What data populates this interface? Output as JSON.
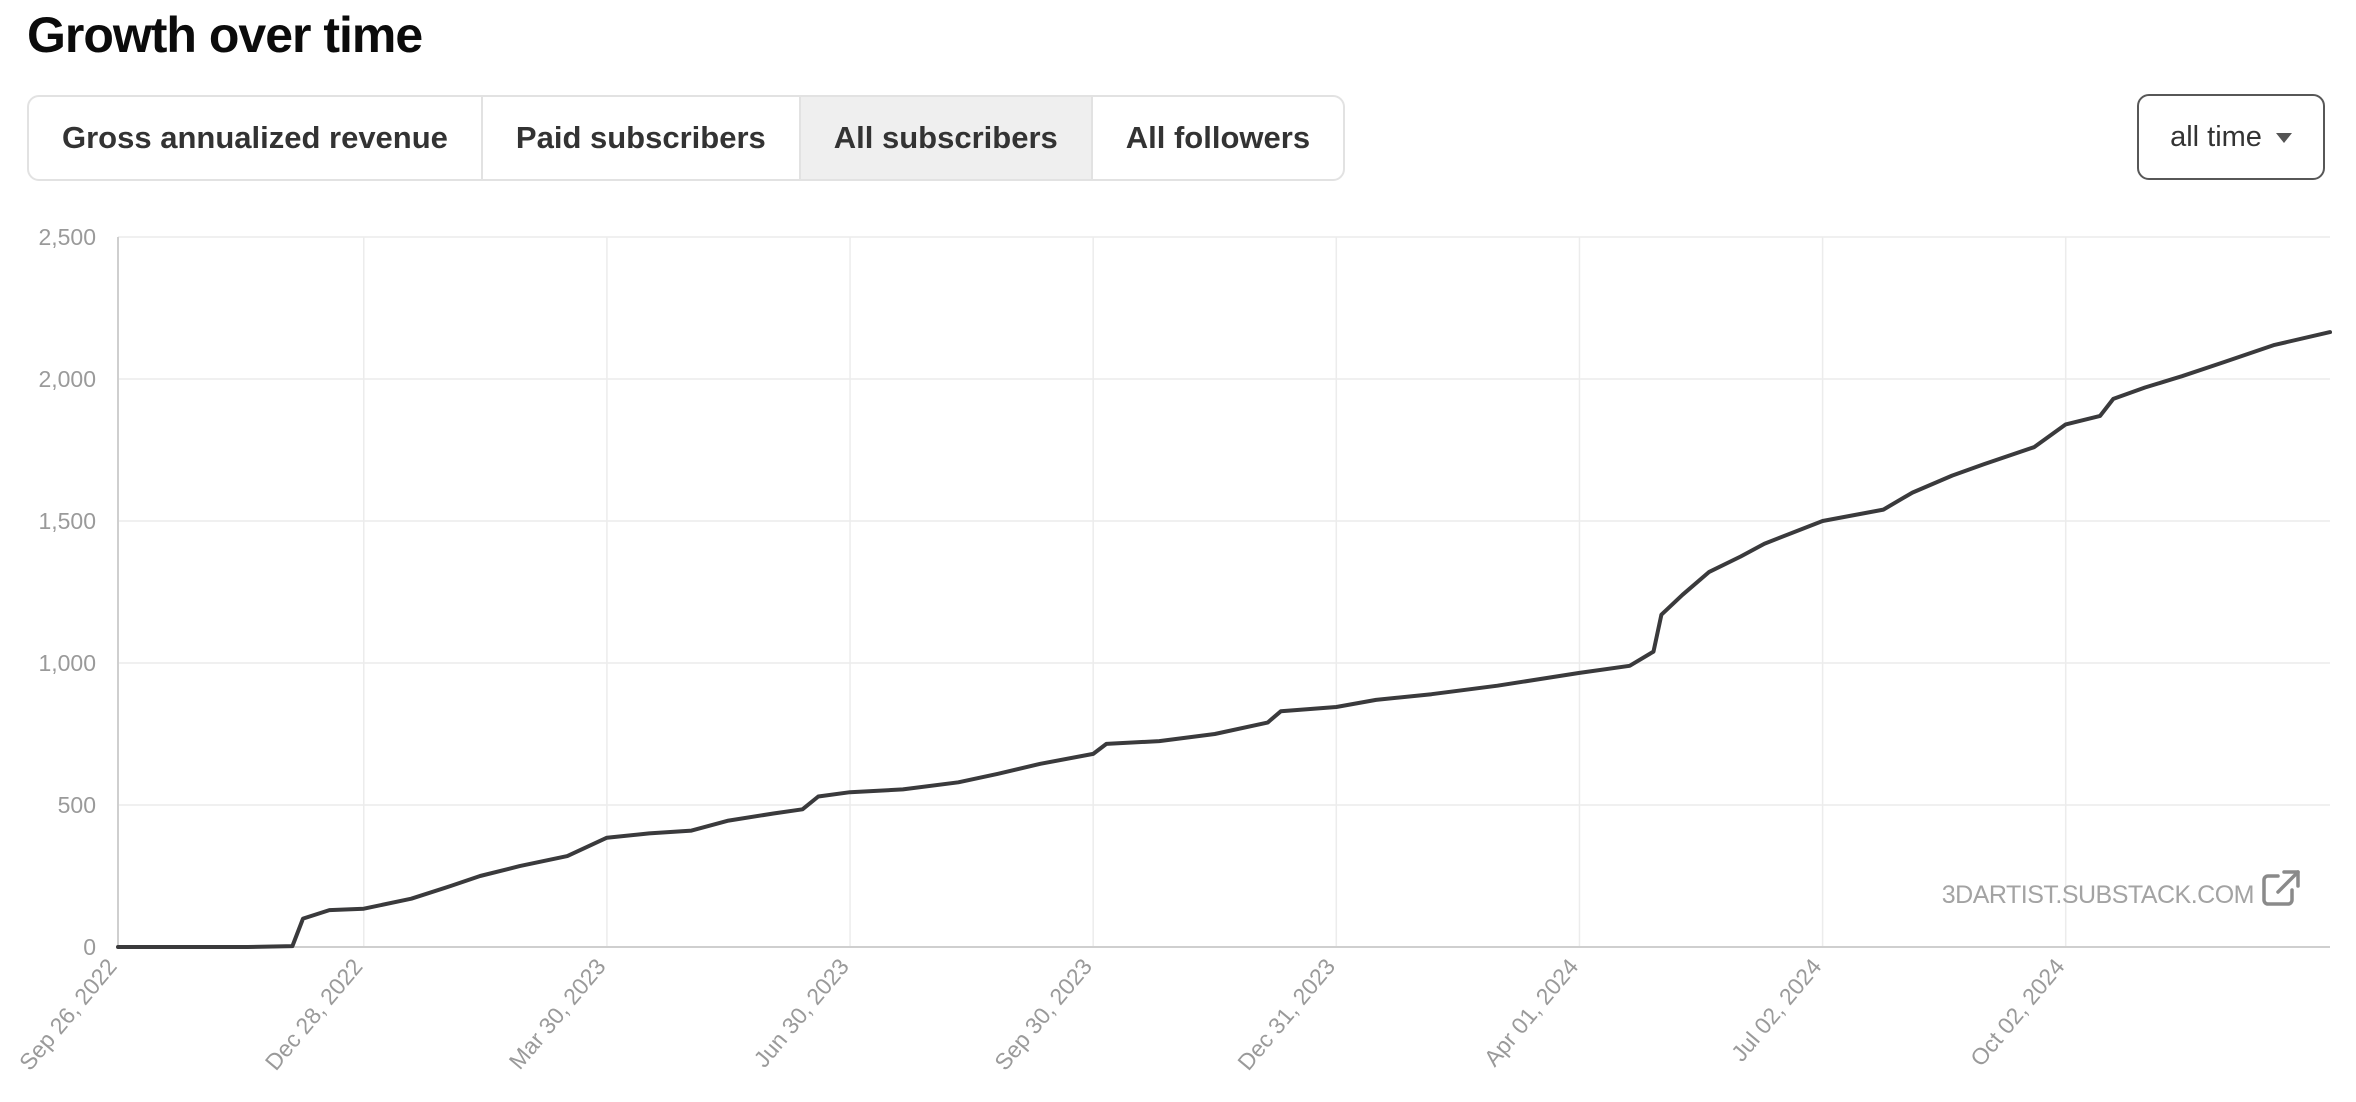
{
  "page": {
    "title": "Growth over time"
  },
  "tabs": [
    {
      "label": "Gross annualized revenue",
      "active": false
    },
    {
      "label": "Paid subscribers",
      "active": false
    },
    {
      "label": "All subscribers",
      "active": true
    },
    {
      "label": "All followers",
      "active": false
    }
  ],
  "period_select": {
    "value": "all time",
    "icon": "caret-down-icon"
  },
  "watermark": {
    "text": "3DARTIST.SUBSTACK.COM",
    "icon": "external-link-icon"
  },
  "colors": {
    "line": "#3a3a3c",
    "grid": "#ececec",
    "axis": "#cfcfcf",
    "tick_text": "#9a9a9a",
    "active_tab": "#efefef"
  },
  "chart_data": {
    "type": "line",
    "title": "",
    "xlabel": "",
    "ylabel": "",
    "x_type": "date",
    "xlim": [
      "2022-09-26",
      "2025-01-10"
    ],
    "ylim": [
      0,
      2500
    ],
    "yticks": [
      0,
      500,
      1000,
      1500,
      2000,
      2500
    ],
    "ytick_labels": [
      "0",
      "500",
      "1,000",
      "1,500",
      "2,000",
      "2,500"
    ],
    "xticks": [
      "2022-09-26",
      "2022-12-28",
      "2023-03-30",
      "2023-06-30",
      "2023-09-30",
      "2023-12-31",
      "2024-04-01",
      "2024-07-02",
      "2024-10-02"
    ],
    "xtick_labels": [
      "Sep 26, 2022",
      "Dec 28, 2022",
      "Mar 30, 2023",
      "Jun 30, 2023",
      "Sep 30, 2023",
      "Dec 31, 2023",
      "Apr 01, 2024",
      "Jul 02, 2024",
      "Oct 02, 2024"
    ],
    "grid": true,
    "series": [
      {
        "values": [
          [
            "2022-09-26",
            0
          ],
          [
            "2022-11-14",
            0
          ],
          [
            "2022-12-01",
            3
          ],
          [
            "2022-12-05",
            100
          ],
          [
            "2022-12-15",
            130
          ],
          [
            "2022-12-28",
            135
          ],
          [
            "2023-01-15",
            170
          ],
          [
            "2023-01-30",
            215
          ],
          [
            "2023-02-10",
            250
          ],
          [
            "2023-02-25",
            285
          ],
          [
            "2023-03-15",
            320
          ],
          [
            "2023-03-30",
            385
          ],
          [
            "2023-04-15",
            400
          ],
          [
            "2023-05-01",
            410
          ],
          [
            "2023-05-15",
            445
          ],
          [
            "2023-06-01",
            470
          ],
          [
            "2023-06-12",
            485
          ],
          [
            "2023-06-18",
            530
          ],
          [
            "2023-06-30",
            545
          ],
          [
            "2023-07-20",
            555
          ],
          [
            "2023-08-10",
            580
          ],
          [
            "2023-08-25",
            610
          ],
          [
            "2023-09-10",
            645
          ],
          [
            "2023-09-30",
            680
          ],
          [
            "2023-10-05",
            715
          ],
          [
            "2023-10-25",
            725
          ],
          [
            "2023-11-15",
            750
          ],
          [
            "2023-12-05",
            790
          ],
          [
            "2023-12-10",
            830
          ],
          [
            "2023-12-31",
            845
          ],
          [
            "2024-01-15",
            870
          ],
          [
            "2024-02-05",
            890
          ],
          [
            "2024-03-01",
            920
          ],
          [
            "2024-04-01",
            965
          ],
          [
            "2024-04-20",
            990
          ],
          [
            "2024-04-29",
            1040
          ],
          [
            "2024-05-02",
            1170
          ],
          [
            "2024-05-10",
            1240
          ],
          [
            "2024-05-20",
            1320
          ],
          [
            "2024-06-01",
            1375
          ],
          [
            "2024-06-10",
            1420
          ],
          [
            "2024-07-02",
            1500
          ],
          [
            "2024-07-25",
            1540
          ],
          [
            "2024-08-05",
            1600
          ],
          [
            "2024-08-20",
            1660
          ],
          [
            "2024-09-01",
            1700
          ],
          [
            "2024-09-20",
            1760
          ],
          [
            "2024-10-02",
            1840
          ],
          [
            "2024-10-15",
            1870
          ],
          [
            "2024-10-20",
            1930
          ],
          [
            "2024-11-01",
            1970
          ],
          [
            "2024-11-15",
            2010
          ],
          [
            "2024-12-01",
            2060
          ],
          [
            "2024-12-20",
            2120
          ],
          [
            "2025-01-10",
            2165
          ]
        ]
      }
    ]
  }
}
